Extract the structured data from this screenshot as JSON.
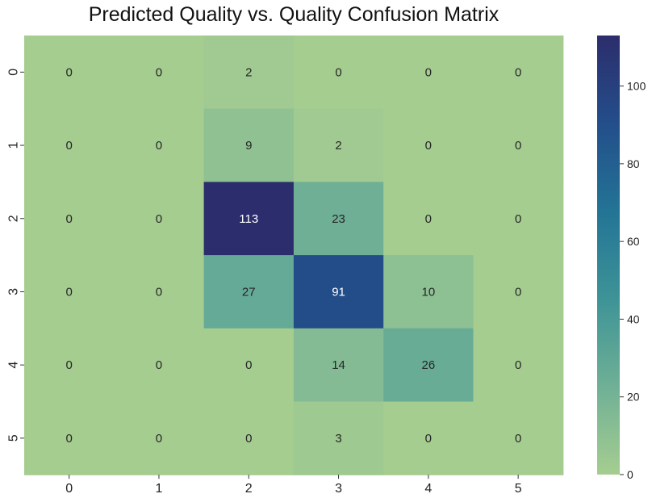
{
  "chart_data": {
    "type": "heatmap",
    "title": "Predicted Quality vs. Quality Confusion Matrix",
    "xlabel": "",
    "ylabel": "",
    "x_categories": [
      "0",
      "1",
      "2",
      "3",
      "4",
      "5"
    ],
    "y_categories": [
      "0",
      "1",
      "2",
      "3",
      "4",
      "5"
    ],
    "values": [
      [
        0,
        0,
        2,
        0,
        0,
        0
      ],
      [
        0,
        0,
        9,
        2,
        0,
        0
      ],
      [
        0,
        0,
        113,
        23,
        0,
        0
      ],
      [
        0,
        0,
        27,
        91,
        10,
        0
      ],
      [
        0,
        0,
        0,
        14,
        26,
        0
      ],
      [
        0,
        0,
        0,
        3,
        0,
        0
      ]
    ],
    "colorbar": {
      "min": 0,
      "max": 113,
      "ticks": [
        0,
        20,
        40,
        60,
        80,
        100
      ],
      "colormap": "crest",
      "colors": [
        "#a5cd90",
        "#6fb096",
        "#3e9397",
        "#237495",
        "#234e8a",
        "#2c2d6c"
      ]
    },
    "annotations": true,
    "grid": false,
    "legend": "colorbar-right"
  }
}
